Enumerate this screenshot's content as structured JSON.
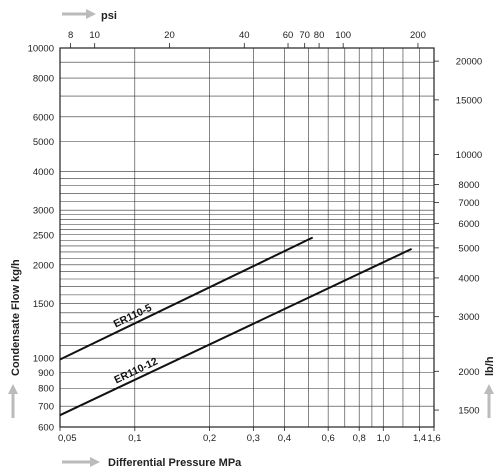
{
  "chart_data": {
    "type": "line",
    "x_scale": "log",
    "y_scale": "log",
    "xlabel": "Differential Pressure MPa",
    "ylabel": "Condensate Flow kg/h",
    "top_axis_label": "psi",
    "right_axis_label": "lb/h",
    "xlim": [
      0.05,
      1.6
    ],
    "ylim": [
      600,
      10000
    ],
    "grid": true,
    "x_ticks": [
      {
        "value": 0.05,
        "label": "0,05"
      },
      {
        "value": 0.1,
        "label": "0,1"
      },
      {
        "value": 0.2,
        "label": "0,2"
      },
      {
        "value": 0.3,
        "label": "0,3"
      },
      {
        "value": 0.4,
        "label": "0,4"
      },
      {
        "value": 0.6,
        "label": "0,6"
      },
      {
        "value": 0.8,
        "label": "0,8"
      },
      {
        "value": 1.0,
        "label": "1,0"
      },
      {
        "value": 1.4,
        "label": "1,4"
      },
      {
        "value": 1.6,
        "label": "1,6"
      }
    ],
    "x_grid": [
      0.05,
      0.1,
      0.2,
      0.3,
      0.4,
      0.5,
      0.6,
      0.7,
      0.8,
      0.9,
      1.0,
      1.2,
      1.4,
      1.6
    ],
    "y_ticks": [
      {
        "value": 600,
        "label": "600"
      },
      {
        "value": 700,
        "label": "700"
      },
      {
        "value": 800,
        "label": "800"
      },
      {
        "value": 900,
        "label": "900"
      },
      {
        "value": 1000,
        "label": "1000"
      },
      {
        "value": 1500,
        "label": "1500"
      },
      {
        "value": 2000,
        "label": "2000"
      },
      {
        "value": 2500,
        "label": "2500"
      },
      {
        "value": 3000,
        "label": "3000"
      },
      {
        "value": 4000,
        "label": "4000"
      },
      {
        "value": 5000,
        "label": "5000"
      },
      {
        "value": 6000,
        "label": "6000"
      },
      {
        "value": 8000,
        "label": "8000"
      },
      {
        "value": 10000,
        "label": "10000"
      }
    ],
    "y_grid": [
      600,
      700,
      800,
      900,
      1000,
      1100,
      1200,
      1300,
      1400,
      1500,
      1600,
      1700,
      1800,
      1900,
      2000,
      2100,
      2200,
      2300,
      2400,
      2500,
      2600,
      2700,
      2800,
      2900,
      3000,
      3200,
      3400,
      3600,
      3800,
      4000,
      5000,
      6000,
      7000,
      8000,
      9000,
      10000
    ],
    "top_ticks_psi": [
      {
        "value": 8,
        "label": "8"
      },
      {
        "value": 10,
        "label": "10"
      },
      {
        "value": 20,
        "label": "20"
      },
      {
        "value": 40,
        "label": "40"
      },
      {
        "value": 60,
        "label": "60"
      },
      {
        "value": 70,
        "label": "70"
      },
      {
        "value": 80,
        "label": "80"
      },
      {
        "value": 100,
        "label": "100"
      },
      {
        "value": 200,
        "label": "200"
      }
    ],
    "right_ticks_lbh": [
      {
        "value": 1500,
        "label": "1500"
      },
      {
        "value": 2000,
        "label": "2000"
      },
      {
        "value": 3000,
        "label": "3000"
      },
      {
        "value": 4000,
        "label": "4000"
      },
      {
        "value": 5000,
        "label": "5000"
      },
      {
        "value": 6000,
        "label": "6000"
      },
      {
        "value": 7000,
        "label": "7000"
      },
      {
        "value": 8000,
        "label": "8000"
      },
      {
        "value": 10000,
        "label": "10000"
      },
      {
        "value": 15000,
        "label": "15000"
      },
      {
        "value": 20000,
        "label": "20000"
      }
    ],
    "series": [
      {
        "name": "ER110-5",
        "x": [
          0.05,
          0.52
        ],
        "y": [
          990,
          2450
        ]
      },
      {
        "name": "ER110-12",
        "x": [
          0.05,
          1.3
        ],
        "y": [
          655,
          2250
        ]
      }
    ]
  }
}
